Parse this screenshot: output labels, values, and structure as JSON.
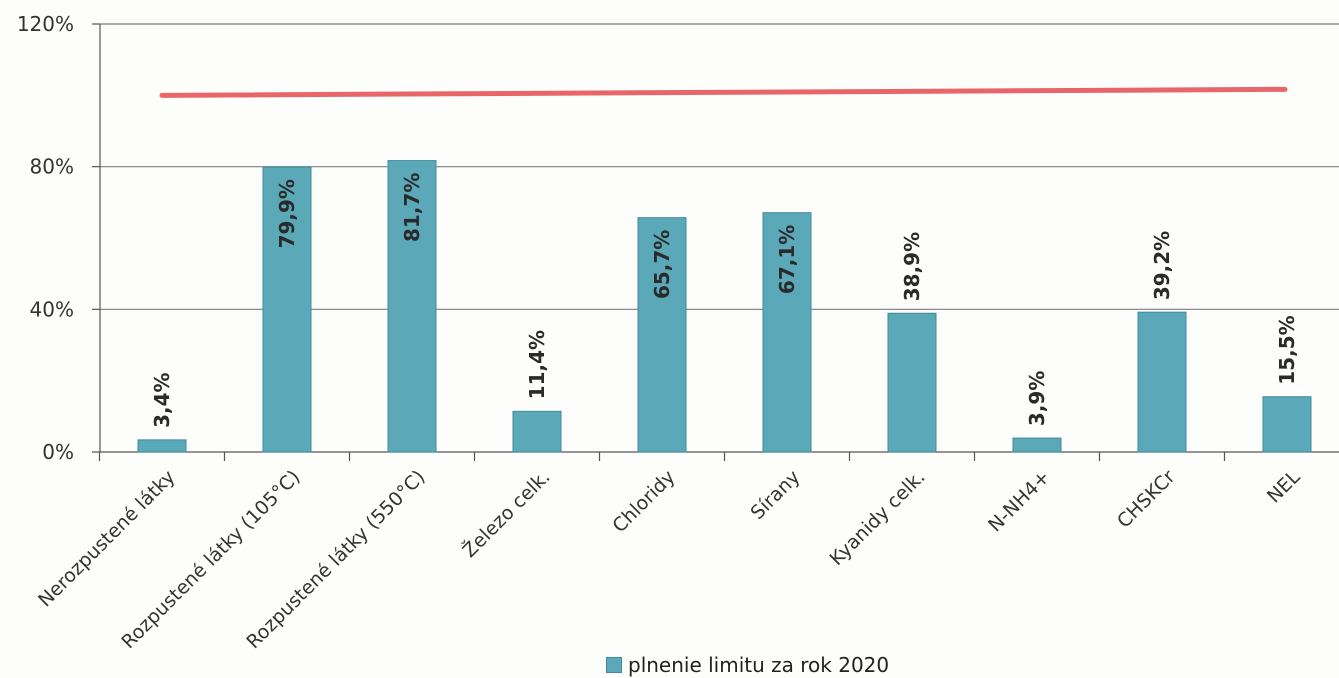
{
  "chart_data": {
    "type": "bar",
    "categories": [
      "Nerozpustené látky",
      "Rozpustené látky (105°C)",
      "Rozpustené látky (550°C)",
      "Železo celk.",
      "Chloridy",
      "Sírany",
      "Kyanidy celk.",
      "N-NH4+",
      "CHSKCr",
      "NEL"
    ],
    "series": [
      {
        "name": "plnenie limitu za rok 2020",
        "values": [
          3.4,
          79.9,
          81.7,
          11.4,
          65.7,
          67.1,
          38.9,
          3.9,
          39.2,
          15.5
        ],
        "labels": [
          "3,4%",
          "79,9%",
          "81,7%",
          "11,4%",
          "65,7%",
          "67,1%",
          "38,9%",
          "3,9%",
          "39,2%",
          "15,5%"
        ],
        "color": "#5aa8b8"
      }
    ],
    "reference_line": {
      "value": 100,
      "color": "#e8666a"
    },
    "y_ticks": [
      {
        "value": 0,
        "label": "0%"
      },
      {
        "value": 40,
        "label": "40%"
      },
      {
        "value": 80,
        "label": "80%"
      },
      {
        "value": 120,
        "label": "120%"
      }
    ],
    "ylim": [
      0,
      120
    ],
    "grid": true,
    "legend_position": "bottom-center",
    "title": "",
    "xlabel": "",
    "ylabel": ""
  },
  "legend": {
    "label": "plnenie limitu za rok 2020"
  }
}
